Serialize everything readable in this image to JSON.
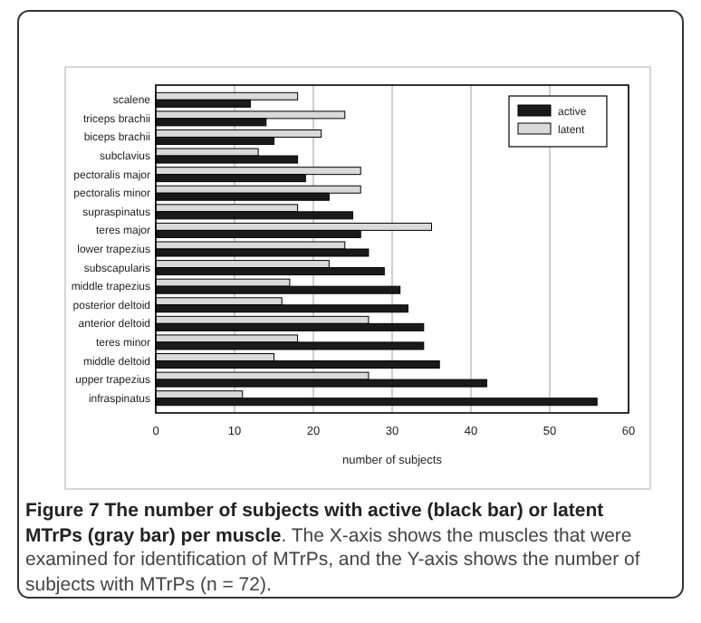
{
  "chart_data": {
    "type": "bar",
    "orientation": "horizontal",
    "title": "Figure 7 The number of subjects with active (black bar) or latent MTrPs (gray bar) per muscle",
    "annotations": [
      ". The X-axis shows the muscles that were examined for identification of MTrPs, and the Y-axis shows the number of subjects with MTrPs (n = 72)."
    ],
    "xlabel": "number of subjects",
    "categories": [
      "scalene",
      "triceps brachii",
      "biceps brachii",
      "subclavius",
      "pectoralis major",
      "pectoralis minor",
      "supraspinatus",
      "teres major",
      "lower trapezius",
      "subscapularis",
      "middle trapezius",
      "posterior deltoid",
      "anterior deltoid",
      "teres minor",
      "middle deltoid",
      "upper trapezius",
      "infraspinatus"
    ],
    "series": [
      {
        "name": "active",
        "color": "#1a1a1a",
        "values": [
          12,
          14,
          15,
          18,
          19,
          22,
          25,
          26,
          27,
          29,
          31,
          32,
          34,
          34,
          36,
          42,
          56
        ]
      },
      {
        "name": "latent",
        "color": "#d9d9d9",
        "values": [
          18,
          24,
          21,
          13,
          26,
          26,
          18,
          35,
          24,
          22,
          17,
          16,
          27,
          18,
          15,
          27,
          11
        ]
      }
    ],
    "xlim": [
      0,
      60
    ],
    "xticks": [
      0,
      10,
      20,
      30,
      40,
      50,
      60
    ],
    "grid": "x",
    "legend": "top right"
  }
}
